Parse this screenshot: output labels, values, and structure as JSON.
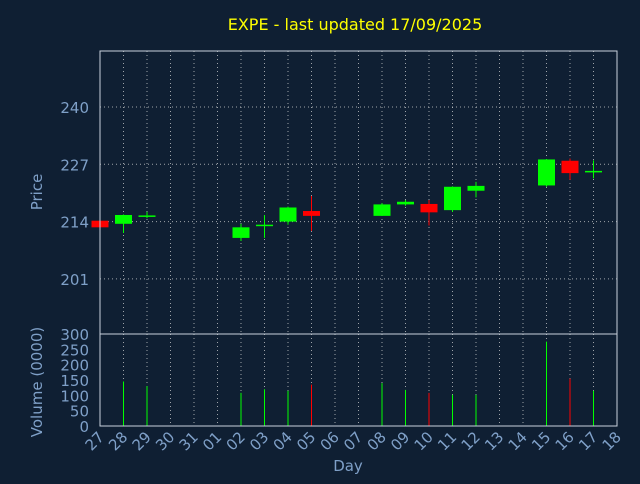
{
  "colors": {
    "background": "#0f1f33",
    "title": "#ffff00",
    "axis_text": "#7fa0c8",
    "frame": "#c8d2dc",
    "grid": "#dddddd",
    "up": "#00ff00",
    "down": "#ff0000"
  },
  "chart_data": {
    "type": "candlestick",
    "title": "EXPE - last updated 17/09/2025",
    "price_axis": {
      "label": "Price",
      "ticks": [
        201,
        214,
        227,
        240
      ],
      "range": [
        188.5,
        252.7
      ]
    },
    "volume_axis": {
      "label": "Volume (0000)",
      "ticks": [
        0,
        50,
        100,
        150,
        200,
        250,
        300
      ],
      "range": [
        0,
        300
      ]
    },
    "x_axis": {
      "label": "Day",
      "ticks": [
        "27",
        "28",
        "29",
        "30",
        "31",
        "01",
        "02",
        "03",
        "04",
        "05",
        "06",
        "07",
        "08",
        "09",
        "10",
        "11",
        "12",
        "13",
        "14",
        "15",
        "16",
        "17",
        "18"
      ]
    },
    "grid": true,
    "candles": [
      {
        "day": "27",
        "open": 214.2,
        "high": 214.4,
        "low": 212.4,
        "close": 212.7,
        "volume": 150
      },
      {
        "day": "28",
        "open": 213.5,
        "high": 215.6,
        "low": 211.4,
        "close": 215.5,
        "volume": 145
      },
      {
        "day": "29",
        "open": 215.1,
        "high": 216.2,
        "low": 214.8,
        "close": 215.4,
        "volume": 130
      },
      {
        "day": "02",
        "open": 210.3,
        "high": 213.5,
        "low": 209.6,
        "close": 212.7,
        "volume": 108
      },
      {
        "day": "03",
        "open": 213.1,
        "high": 215.5,
        "low": 210.3,
        "close": 213.3,
        "volume": 120
      },
      {
        "day": "04",
        "open": 214.0,
        "high": 217.4,
        "low": 213.3,
        "close": 217.2,
        "volume": 115
      },
      {
        "day": "05",
        "open": 216.4,
        "high": 219.8,
        "low": 211.9,
        "close": 215.3,
        "volume": 135
      },
      {
        "day": "08",
        "open": 215.3,
        "high": 218.2,
        "low": 215.3,
        "close": 217.9,
        "volume": 140
      },
      {
        "day": "09",
        "open": 217.9,
        "high": 218.9,
        "low": 217.6,
        "close": 218.5,
        "volume": 118
      },
      {
        "day": "10",
        "open": 218.0,
        "high": 218.9,
        "low": 213.1,
        "close": 216.1,
        "volume": 108
      },
      {
        "day": "11",
        "open": 216.6,
        "high": 222.0,
        "low": 216.2,
        "close": 221.9,
        "volume": 102
      },
      {
        "day": "12",
        "open": 221.0,
        "high": 223.0,
        "low": 219.5,
        "close": 222.1,
        "volume": 102
      },
      {
        "day": "15",
        "open": 222.2,
        "high": 228.2,
        "low": 221.9,
        "close": 228.1,
        "volume": 275
      },
      {
        "day": "16",
        "open": 227.8,
        "high": 228.3,
        "low": 223.5,
        "close": 225.0,
        "volume": 155
      },
      {
        "day": "17",
        "open": 225.2,
        "high": 227.9,
        "low": 223.8,
        "close": 225.5,
        "volume": 115
      }
    ]
  }
}
